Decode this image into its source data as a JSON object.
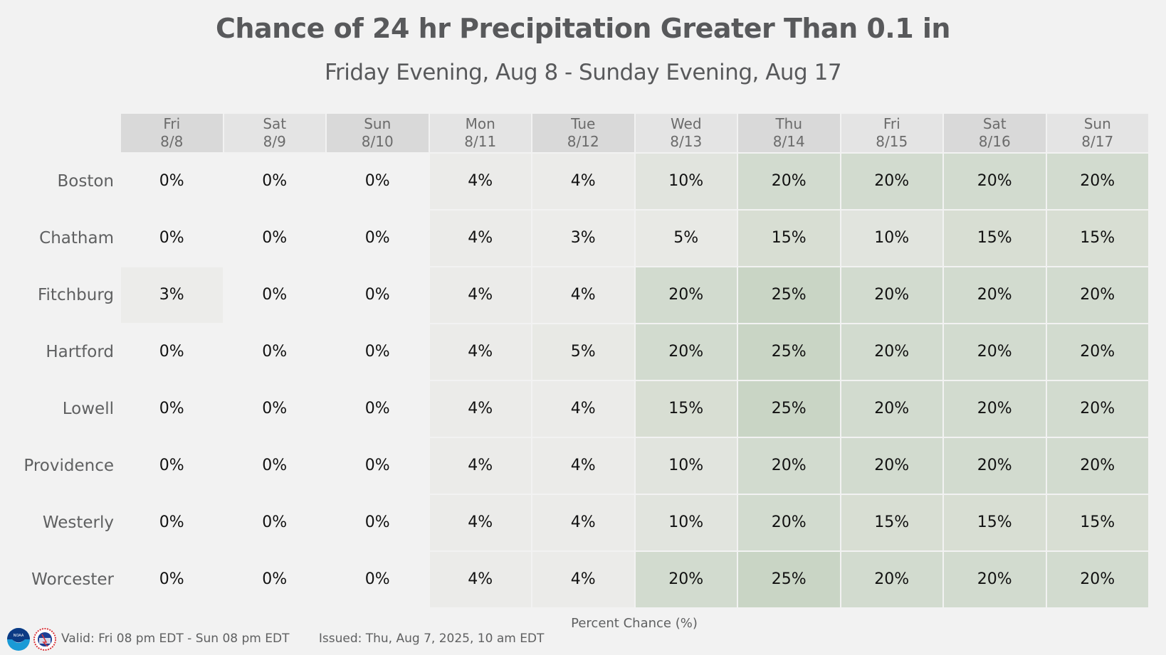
{
  "chart_data": {
    "type": "heatmap",
    "title": "Chance of 24 hr Precipitation Greater Than 0.1 in",
    "subtitle": "Friday Evening, Aug 8 - Sunday Evening, Aug 17",
    "xlabel": "Percent Chance (%)",
    "unit": "%",
    "columns": [
      {
        "day": "Fri",
        "date": "8/8"
      },
      {
        "day": "Sat",
        "date": "8/9"
      },
      {
        "day": "Sun",
        "date": "8/10"
      },
      {
        "day": "Mon",
        "date": "8/11"
      },
      {
        "day": "Tue",
        "date": "8/12"
      },
      {
        "day": "Wed",
        "date": "8/13"
      },
      {
        "day": "Thu",
        "date": "8/14"
      },
      {
        "day": "Fri",
        "date": "8/15"
      },
      {
        "day": "Sat",
        "date": "8/16"
      },
      {
        "day": "Sun",
        "date": "8/17"
      }
    ],
    "rows": [
      {
        "location": "Boston",
        "values": [
          0,
          0,
          0,
          4,
          4,
          10,
          20,
          20,
          20,
          20
        ]
      },
      {
        "location": "Chatham",
        "values": [
          0,
          0,
          0,
          4,
          3,
          5,
          15,
          10,
          15,
          15
        ]
      },
      {
        "location": "Fitchburg",
        "values": [
          3,
          0,
          0,
          4,
          4,
          20,
          25,
          20,
          20,
          20
        ]
      },
      {
        "location": "Hartford",
        "values": [
          0,
          0,
          0,
          4,
          5,
          20,
          25,
          20,
          20,
          20
        ]
      },
      {
        "location": "Lowell",
        "values": [
          0,
          0,
          0,
          4,
          4,
          15,
          25,
          20,
          20,
          20
        ]
      },
      {
        "location": "Providence",
        "values": [
          0,
          0,
          0,
          4,
          4,
          10,
          20,
          20,
          20,
          20
        ]
      },
      {
        "location": "Westerly",
        "values": [
          0,
          0,
          0,
          4,
          4,
          10,
          20,
          15,
          15,
          15
        ]
      },
      {
        "location": "Worcester",
        "values": [
          0,
          0,
          0,
          4,
          4,
          20,
          25,
          20,
          20,
          20
        ]
      }
    ],
    "color_scale": {
      "0": "#f2f2f2",
      "3": "#ececea",
      "4": "#ebebe9",
      "5": "#e8e9e5",
      "10": "#e1e4de",
      "15": "#d8ded3",
      "20": "#d2dbcf",
      "25": "#c9d5c5"
    },
    "header_colors": [
      "#d9d9d9",
      "#e4e4e4"
    ]
  },
  "footer": {
    "valid": "Valid: Fri 08 pm EDT - Sun 08 pm EDT",
    "issued": "Issued: Thu, Aug 7, 2025, 10 am EDT",
    "logos": [
      "noaa-logo",
      "nws-logo"
    ]
  }
}
